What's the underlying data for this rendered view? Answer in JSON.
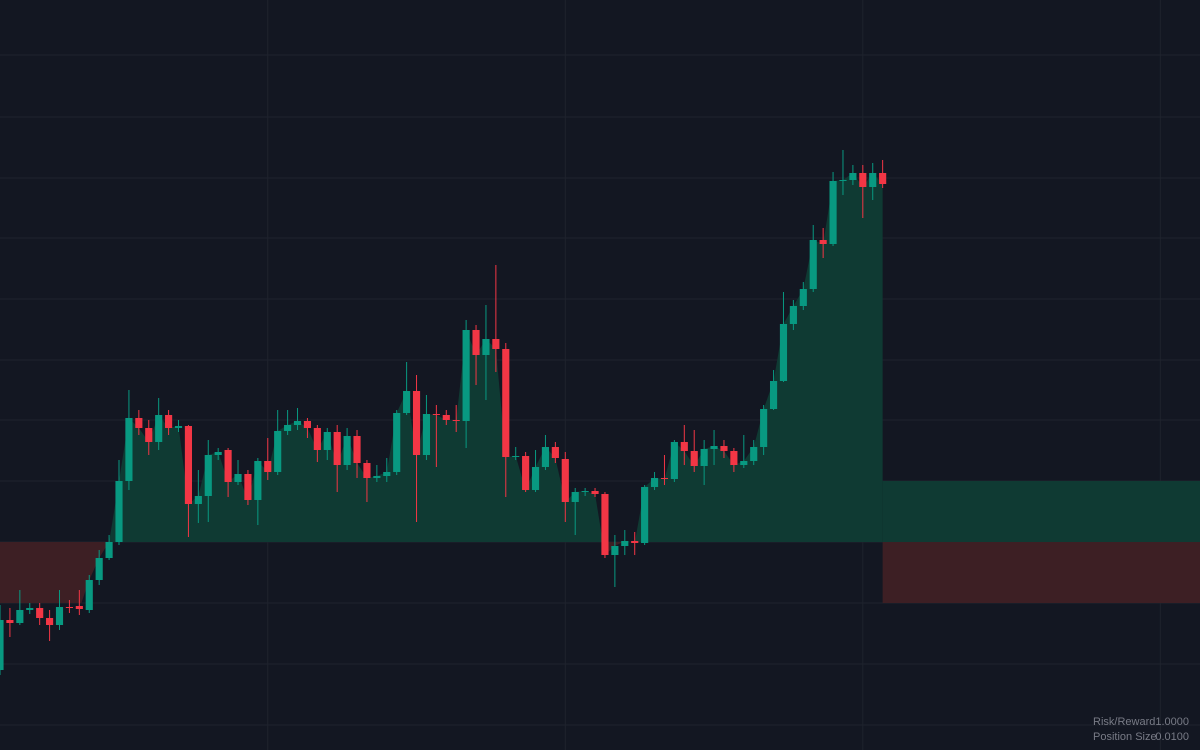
{
  "chart_data": {
    "type": "candlestick",
    "open": [
      80,
      130,
      127,
      140,
      142,
      132,
      125,
      143,
      144,
      140,
      170,
      192,
      208,
      269,
      332,
      322,
      308,
      335,
      322,
      324,
      246,
      254,
      295,
      300,
      268,
      276,
      250,
      289,
      278,
      319,
      325,
      329,
      322,
      300,
      318,
      285,
      314,
      287,
      272,
      274,
      278,
      337,
      359,
      295,
      336,
      335,
      330,
      329,
      420,
      395,
      411,
      401,
      293,
      294,
      260,
      283,
      303,
      291,
      248,
      258,
      259,
      256,
      195,
      204,
      209,
      207,
      263,
      272,
      271,
      308,
      299,
      284,
      301,
      304,
      299,
      285,
      289,
      303,
      341,
      369,
      426,
      444,
      461,
      510,
      506,
      569,
      570,
      577,
      563,
      577
    ],
    "high": [
      145,
      142,
      160,
      147,
      147,
      140,
      160,
      150,
      160,
      175,
      200,
      215,
      290,
      360,
      340,
      330,
      352,
      340,
      330,
      325,
      280,
      310,
      302,
      302,
      290,
      280,
      292,
      312,
      340,
      340,
      342,
      332,
      325,
      322,
      325,
      322,
      320,
      290,
      285,
      292,
      340,
      388,
      375,
      355,
      345,
      340,
      345,
      430,
      425,
      445,
      485,
      407,
      303,
      298,
      300,
      315,
      308,
      298,
      262,
      262,
      262,
      258,
      215,
      220,
      218,
      265,
      278,
      295,
      310,
      325,
      320,
      310,
      320,
      310,
      302,
      315,
      310,
      345,
      380,
      458,
      450,
      468,
      525,
      522,
      578,
      600,
      585,
      585,
      587,
      590
    ],
    "low": [
      75,
      113,
      125,
      136,
      125,
      109,
      120,
      137,
      135,
      137,
      165,
      190,
      205,
      260,
      315,
      295,
      300,
      315,
      318,
      213,
      227,
      228,
      290,
      253,
      265,
      245,
      225,
      270,
      275,
      315,
      320,
      312,
      288,
      290,
      258,
      280,
      272,
      248,
      268,
      268,
      275,
      335,
      228,
      290,
      283,
      325,
      318,
      302,
      365,
      350,
      378,
      253,
      290,
      258,
      258,
      280,
      287,
      228,
      215,
      254,
      253,
      192,
      163,
      195,
      195,
      205,
      260,
      265,
      268,
      285,
      278,
      265,
      285,
      292,
      278,
      282,
      285,
      295,
      340,
      368,
      420,
      440,
      458,
      492,
      504,
      555,
      565,
      532,
      550,
      562
    ],
    "close": [
      130,
      127,
      140,
      142,
      132,
      125,
      143,
      142,
      141,
      170,
      192,
      208,
      269,
      332,
      322,
      308,
      335,
      322,
      324,
      246,
      254,
      295,
      298,
      268,
      276,
      250,
      289,
      278,
      319,
      325,
      329,
      322,
      300,
      318,
      285,
      314,
      287,
      272,
      274,
      278,
      337,
      359,
      295,
      336,
      335,
      330,
      329,
      420,
      395,
      411,
      401,
      293,
      294,
      260,
      283,
      303,
      292,
      248,
      258,
      259,
      256,
      195,
      204,
      209,
      207,
      263,
      272,
      271,
      308,
      299,
      284,
      301,
      304,
      299,
      285,
      289,
      303,
      341,
      369,
      426,
      444,
      461,
      510,
      506,
      569,
      570,
      577,
      563,
      577,
      566
    ],
    "up_color": "#089981",
    "down_color": "#f23645",
    "xlim": [
      0,
      121
    ],
    "xticks": [
      27,
      57,
      87,
      117
    ],
    "ylim": [
      0,
      750
    ],
    "yticks": [
      695,
      633,
      572,
      512,
      451,
      390,
      330,
      269,
      208,
      147,
      86,
      25
    ],
    "grid": true,
    "position": {
      "entry": 208,
      "target": 269,
      "stop": 147,
      "profit_color": "#0f3a33",
      "loss_color": "#3d1f24"
    },
    "stats": [
      {
        "label": "Risk/Reward",
        "value": "1.0000"
      },
      {
        "label": "Position Size",
        "value": "0.0100"
      }
    ]
  }
}
